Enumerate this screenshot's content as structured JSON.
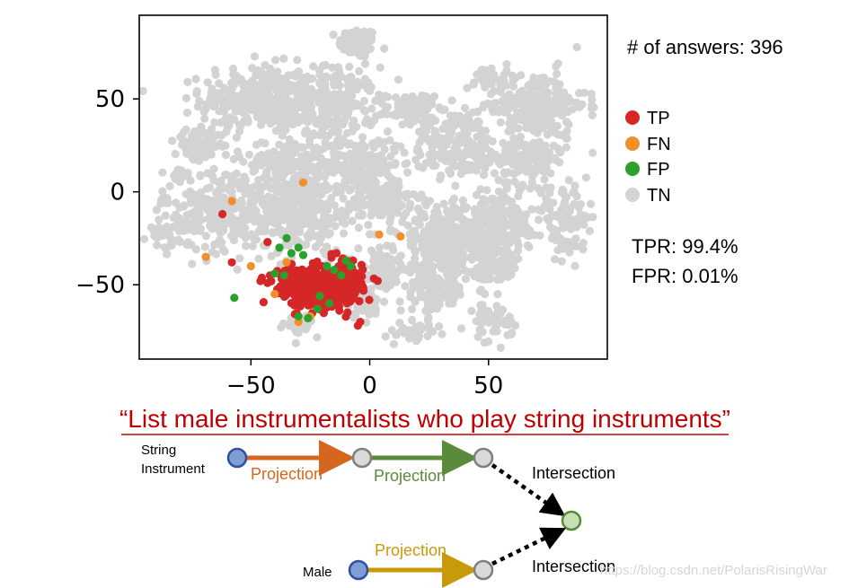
{
  "chart_data": {
    "type": "scatter",
    "title": "",
    "xlabel": "",
    "ylabel": "",
    "xlim": [
      -97,
      100
    ],
    "ylim": [
      -90,
      95
    ],
    "xticks": [
      -50,
      0,
      50
    ],
    "yticks": [
      50,
      0,
      -50
    ],
    "xtick_labels": [
      "−50",
      "0",
      "50"
    ],
    "ytick_labels": [
      "50",
      "0",
      "−50"
    ],
    "grid": false,
    "legend_position": "right",
    "series": [
      {
        "name": "TN",
        "color": "#d3d3d3",
        "clusters": [
          {
            "cx": -5,
            "cy": 80,
            "sx": 4,
            "sy": 4,
            "n": 90
          },
          {
            "cx": -47,
            "cy": 50,
            "sx": 12,
            "sy": 9,
            "n": 320
          },
          {
            "cx": -15,
            "cy": 47,
            "sx": 9,
            "sy": 10,
            "n": 220
          },
          {
            "cx": 17,
            "cy": 45,
            "sx": 5,
            "sy": 4,
            "n": 80
          },
          {
            "cx": 49,
            "cy": 62,
            "sx": 3,
            "sy": 2,
            "n": 40
          },
          {
            "cx": 69,
            "cy": 47,
            "sx": 11,
            "sy": 9,
            "n": 230
          },
          {
            "cx": 35,
            "cy": 26,
            "sx": 9,
            "sy": 9,
            "n": 180
          },
          {
            "cx": 65,
            "cy": 18,
            "sx": 9,
            "sy": 7,
            "n": 150
          },
          {
            "cx": -72,
            "cy": 25,
            "sx": 5,
            "sy": 4,
            "n": 90
          },
          {
            "cx": -33,
            "cy": 17,
            "sx": 10,
            "sy": 6,
            "n": 150
          },
          {
            "cx": -3,
            "cy": 15,
            "sx": 7,
            "sy": 7,
            "n": 130
          },
          {
            "cx": -57,
            "cy": -10,
            "sx": 15,
            "sy": 11,
            "n": 360
          },
          {
            "cx": -28,
            "cy": -10,
            "sx": 9,
            "sy": 11,
            "n": 220
          },
          {
            "cx": 5,
            "cy": -5,
            "sx": 8,
            "sy": 7,
            "n": 140
          },
          {
            "cx": 30,
            "cy": -25,
            "sx": 9,
            "sy": 10,
            "n": 210
          },
          {
            "cx": 55,
            "cy": -18,
            "sx": 10,
            "sy": 9,
            "n": 180
          },
          {
            "cx": 82,
            "cy": -15,
            "sx": 5,
            "sy": 8,
            "n": 90
          },
          {
            "cx": 27,
            "cy": -53,
            "sx": 7,
            "sy": 6,
            "n": 120
          },
          {
            "cx": 52,
            "cy": -42,
            "sx": 5,
            "sy": 5,
            "n": 70
          },
          {
            "cx": 5,
            "cy": -42,
            "sx": 5,
            "sy": 5,
            "n": 80
          },
          {
            "cx": -3,
            "cy": -60,
            "sx": 4,
            "sy": 4,
            "n": 50
          },
          {
            "cx": 20,
            "cy": -75,
            "sx": 4,
            "sy": 3,
            "n": 40
          },
          {
            "cx": 52,
            "cy": -70,
            "sx": 4,
            "sy": 5,
            "n": 50
          },
          {
            "cx": -88,
            "cy": -23,
            "sx": 2.5,
            "sy": 3,
            "n": 25
          },
          {
            "cx": -80,
            "cy": 10,
            "sx": 2,
            "sy": 2,
            "n": 15
          },
          {
            "cx": 90,
            "cy": -15,
            "sx": 1.5,
            "sy": 2,
            "n": 10
          },
          {
            "cx": -30,
            "cy": -72,
            "sx": 3,
            "sy": 3,
            "n": 30
          },
          {
            "cx": 37,
            "cy": -25,
            "sx": 10,
            "sy": 6,
            "n": 120
          }
        ],
        "points": []
      },
      {
        "name": "TP",
        "color": "#d62728",
        "clusters": [
          {
            "cx": -23,
            "cy": -52,
            "sx": 6,
            "sy": 5,
            "n": 300
          },
          {
            "cx": -13,
            "cy": -50,
            "sx": 5,
            "sy": 6,
            "n": 200
          },
          {
            "cx": -30,
            "cy": -47,
            "sx": 5,
            "sy": 3,
            "n": 90
          }
        ],
        "points": [
          [
            -62,
            -12
          ],
          [
            -58,
            -38
          ],
          [
            -43,
            -27
          ],
          [
            -42,
            -45
          ],
          [
            -46,
            -48
          ],
          [
            -5,
            -72
          ],
          [
            -4,
            -70
          ],
          [
            -7,
            -37
          ],
          [
            -14,
            -33
          ],
          [
            -20,
            -40
          ]
        ]
      },
      {
        "name": "FN",
        "color": "#f28e2b",
        "clusters": [],
        "points": [
          [
            -58,
            -5
          ],
          [
            -69,
            -35
          ],
          [
            -50,
            -40
          ],
          [
            -28,
            5
          ],
          [
            4,
            -23
          ],
          [
            13,
            -24
          ],
          [
            -35,
            -38
          ],
          [
            -40,
            -55
          ],
          [
            -25,
            -67
          ],
          [
            -30,
            -70
          ]
        ]
      },
      {
        "name": "FP",
        "color": "#2ca02c",
        "clusters": [],
        "points": [
          [
            -57,
            -57
          ],
          [
            -35,
            -25
          ],
          [
            -38,
            -30
          ],
          [
            -33,
            -33
          ],
          [
            -30,
            -30
          ],
          [
            -28,
            -34
          ],
          [
            -18,
            -40
          ],
          [
            -15,
            -42
          ],
          [
            -10,
            -37
          ],
          [
            -8,
            -40
          ],
          [
            -12,
            -45
          ],
          [
            -22,
            -63
          ],
          [
            -26,
            -68
          ],
          [
            -30,
            -67
          ],
          [
            -36,
            -45
          ],
          [
            -40,
            -44
          ],
          [
            -21,
            -56
          ],
          [
            -17,
            -60
          ]
        ]
      }
    ]
  },
  "header_stats": {
    "answers_text": "# of answers: 396",
    "tpr_text": "TPR: 99.4%",
    "fpr_text": "FPR: 0.01%"
  },
  "legend": [
    {
      "label": "TP",
      "color": "#d62728"
    },
    {
      "label": "FN",
      "color": "#f28e2b"
    },
    {
      "label": "FP",
      "color": "#2ca02c"
    },
    {
      "label": "TN",
      "color": "#d3d3d3"
    }
  ],
  "query": {
    "text": "“List male instrumentalists who play string instruments”",
    "color": "#c00000"
  },
  "diagram": {
    "nodes": {
      "string_instrument_label_line1": "String",
      "string_instrument_label_line2": "Instrument",
      "male_label": "Male"
    },
    "projection_label": "Projection",
    "intersection_label": "Intersection",
    "edges": [
      {
        "name": "projection-1",
        "label": "Projection",
        "color": "#d4661e"
      },
      {
        "name": "projection-2",
        "label": "Projection",
        "color": "#5b8a3a"
      },
      {
        "name": "projection-3",
        "label": "Projection",
        "color": "#c89a0a"
      }
    ],
    "colors": {
      "anchor_fill": "#7f9fd4",
      "anchor_stroke": "#2f4f9f",
      "var_fill": "#d9d9d9",
      "var_stroke": "#7f7f7f",
      "target_fill": "#c5e0b4",
      "target_stroke": "#5b8a3a"
    }
  },
  "watermark": "https://blog.csdn.net/PolarisRisingWar"
}
